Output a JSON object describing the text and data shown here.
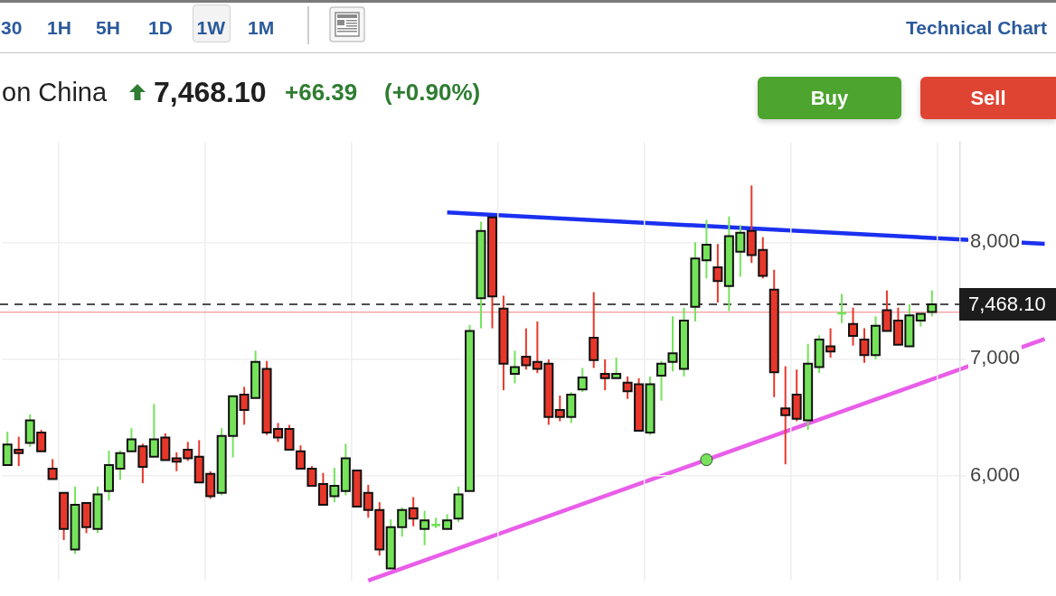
{
  "chart_data": {
    "type": "candlestick",
    "title": "on China",
    "annotations": [
      "30",
      "1H",
      "5H",
      "1D",
      "1W",
      "1M",
      "Technical Chart",
      "7,468.10",
      "+66.39",
      "(+0.90%)",
      "Buy",
      "Sell"
    ],
    "categories": [
      null,
      null,
      null,
      null,
      null,
      null,
      null,
      null,
      null,
      null,
      null,
      null,
      null,
      null,
      null,
      null,
      null,
      null,
      null,
      null,
      null,
      null,
      null,
      null,
      null,
      null,
      null,
      null,
      null,
      null,
      null,
      null,
      null,
      null,
      null,
      null,
      null,
      null,
      null,
      null,
      null,
      null,
      null,
      null,
      null,
      null,
      null,
      null,
      null,
      null,
      null,
      null,
      null,
      null,
      null,
      null,
      null,
      null,
      null,
      null,
      null,
      null,
      null,
      null,
      null,
      null,
      null,
      null,
      null,
      null,
      null,
      null,
      null,
      null,
      null,
      null,
      null,
      null,
      null,
      null,
      null,
      null,
      null,
      null,
      null,
      null,
      null,
      null,
      null,
      null,
      null,
      null,
      null
    ],
    "ohlc": [
      [
        6089,
        6376,
        6089,
        6266
      ],
      [
        6221,
        6332,
        6081,
        6192
      ],
      [
        6280,
        6524,
        6244,
        6472
      ],
      [
        6369,
        6391,
        6207,
        6207
      ],
      [
        6059,
        6140,
        5970,
        5970
      ],
      [
        5852,
        5852,
        5446,
        5542
      ],
      [
        5365,
        5904,
        5328,
        5749
      ],
      [
        5764,
        5764,
        5506,
        5557
      ],
      [
        5542,
        5904,
        5506,
        5838
      ],
      [
        5867,
        6214,
        5786,
        6089
      ],
      [
        6059,
        6214,
        5963,
        6192
      ],
      [
        6207,
        6406,
        6207,
        6310
      ],
      [
        6251,
        6273,
        5934,
        6074
      ],
      [
        6162,
        6613,
        6162,
        6310
      ],
      [
        6325,
        6362,
        6133,
        6133
      ],
      [
        6148,
        6199,
        6037,
        6118
      ],
      [
        6221,
        6288,
        6125,
        6148
      ],
      [
        6162,
        6303,
        5941,
        5941
      ],
      [
        6015,
        6037,
        5801,
        5823
      ],
      [
        5852,
        6406,
        5830,
        6340
      ],
      [
        6340,
        6679,
        6155,
        6679
      ],
      [
        6694,
        6760,
        6435,
        6561
      ],
      [
        6664,
        7070,
        6664,
        6974
      ],
      [
        6915,
        6982,
        6347,
        6369
      ],
      [
        6399,
        6450,
        6288,
        6325
      ],
      [
        6399,
        6435,
        6221,
        6221
      ],
      [
        6207,
        6258,
        6059,
        6059
      ],
      [
        6059,
        6081,
        5911,
        5911
      ],
      [
        5926,
        6022,
        5749,
        5749
      ],
      [
        5823,
        6066,
        5771,
        5911
      ],
      [
        5867,
        6273,
        5830,
        6148
      ],
      [
        6044,
        6044,
        5734,
        5734
      ],
      [
        5852,
        5919,
        5638,
        5705
      ],
      [
        5705,
        5771,
        5314,
        5365
      ],
      [
        5203,
        5624,
        5203,
        5557
      ],
      [
        5557,
        5727,
        5476,
        5705
      ],
      [
        5720,
        5815,
        5565,
        5631
      ],
      [
        5542,
        5697,
        5402,
        5616
      ],
      [
        5568,
        5638,
        5550,
        5576
      ],
      [
        5542,
        5668,
        5542,
        5616
      ],
      [
        5631,
        5904,
        5601,
        5838
      ],
      [
        5867,
        7291,
        5867,
        7240
      ],
      [
        7520,
        8177,
        7262,
        8096
      ],
      [
        8214,
        8214,
        7262,
        7535
      ],
      [
        7432,
        7542,
        6731,
        6959
      ],
      [
        6871,
        7070,
        6790,
        6930
      ],
      [
        7018,
        7262,
        6908,
        6945
      ],
      [
        6974,
        7321,
        6878,
        6915
      ],
      [
        6959,
        6996,
        6435,
        6502
      ],
      [
        6561,
        6686,
        6465,
        6502
      ],
      [
        6502,
        6716,
        6450,
        6694
      ],
      [
        6738,
        6922,
        6716,
        6841
      ],
      [
        7181,
        7572,
        6922,
        6989
      ],
      [
        6871,
        6996,
        6731,
        6834
      ],
      [
        6834,
        7011,
        6834,
        6871
      ],
      [
        6797,
        6849,
        6657,
        6723
      ],
      [
        6782,
        6834,
        6384,
        6384
      ],
      [
        6369,
        6849,
        6347,
        6782
      ],
      [
        6856,
        6982,
        6642,
        6959
      ],
      [
        6974,
        7365,
        6893,
        7048
      ],
      [
        6915,
        7439,
        6849,
        7328
      ],
      [
        7446,
        8000,
        7321,
        7860
      ],
      [
        7845,
        8192,
        7690,
        7978
      ],
      [
        7786,
        7985,
        7483,
        7668
      ],
      [
        7624,
        8221,
        7410,
        8052
      ],
      [
        7919,
        8148,
        7705,
        8081
      ],
      [
        8096,
        8487,
        7823,
        7889
      ],
      [
        7934,
        8044,
        7690,
        7712
      ],
      [
        7594,
        7764,
        6672,
        6886
      ],
      [
        6576,
        6937,
        6096,
        6517
      ],
      [
        6694,
        6908,
        6465,
        6487
      ],
      [
        6472,
        7129,
        6391,
        6959
      ],
      [
        6930,
        7203,
        6878,
        7166
      ],
      [
        7107,
        7262,
        7011,
        7063
      ],
      [
        7383,
        7557,
        7306,
        7391
      ],
      [
        7299,
        7439,
        7114,
        7196
      ],
      [
        7166,
        7262,
        6967,
        7033
      ],
      [
        7033,
        7365,
        6996,
        7284
      ],
      [
        7417,
        7587,
        7240,
        7240
      ],
      [
        7328,
        7439,
        7122,
        7122
      ],
      [
        7107,
        7469,
        7107,
        7373
      ],
      [
        7328,
        7387,
        7277,
        7387
      ],
      [
        7402,
        7587,
        7365,
        7468
      ],
      null,
      null,
      null,
      null,
      null,
      null,
      null,
      null,
      null,
      null
    ],
    "colors": [
      "#74e35a",
      "#e8372a",
      "#74e35a",
      "#e8372a",
      "#e8372a",
      "#e8372a",
      "#74e35a",
      "#e8372a",
      "#74e35a",
      "#74e35a",
      "#74e35a",
      "#74e35a",
      "#e8372a",
      "#74e35a",
      "#e8372a",
      "#e8372a",
      "#e8372a",
      "#e8372a",
      "#e8372a",
      "#74e35a",
      "#74e35a",
      "#e8372a",
      "#74e35a",
      "#e8372a",
      "#e8372a",
      "#e8372a",
      "#e8372a",
      "#e8372a",
      "#e8372a",
      "#74e35a",
      "#74e35a",
      "#e8372a",
      "#e8372a",
      "#e8372a",
      "#74e35a",
      "#74e35a",
      "#e8372a",
      "#74e35a",
      "#74e35a",
      "#74e35a",
      "#74e35a",
      "#74e35a",
      "#74e35a",
      "#e8372a",
      "#e8372a",
      "#74e35a",
      "#e8372a",
      "#e8372a",
      "#e8372a",
      "#e8372a",
      "#74e35a",
      "#74e35a",
      "#e8372a",
      "#e8372a",
      "#74e35a",
      "#e8372a",
      "#e8372a",
      "#74e35a",
      "#74e35a",
      "#74e35a",
      "#74e35a",
      "#74e35a",
      "#74e35a",
      "#e8372a",
      "#74e35a",
      "#74e35a",
      "#e8372a",
      "#e8372a",
      "#e8372a",
      "#e8372a",
      "#e8372a",
      "#74e35a",
      "#74e35a",
      "#e8372a",
      "#74e35a",
      "#e8372a",
      "#e8372a",
      "#74e35a",
      "#e8372a",
      "#e8372a",
      "#74e35a",
      "#74e35a",
      "#74e35a",
      null,
      null,
      null,
      null,
      null,
      null,
      null,
      null,
      null,
      null
    ],
    "series": [
      {
        "type": "line",
        "color": "#1b30f0",
        "values": [
          null,
          null,
          null,
          null,
          null,
          null,
          null,
          null,
          null,
          null,
          null,
          null,
          null,
          null,
          null,
          null,
          null,
          null,
          null,
          null,
          null,
          null,
          null,
          null,
          null,
          null,
          null,
          null,
          null,
          null,
          null,
          null,
          null,
          null,
          null,
          null,
          null,
          null,
          null,
          8256,
          null,
          null,
          null,
          null,
          null,
          null,
          null,
          null,
          null,
          null,
          null,
          null,
          null,
          null,
          null,
          null,
          null,
          null,
          null,
          null,
          null,
          null,
          null,
          null,
          null,
          null,
          null,
          null,
          null,
          null,
          null,
          null,
          null,
          null,
          null,
          null,
          null,
          null,
          null,
          null,
          null,
          null,
          null,
          null,
          null,
          null,
          null,
          null,
          null,
          null,
          null,
          null,
          7986
        ]
      },
      {
        "type": "line",
        "color": "#e95de9",
        "values": [
          null,
          null,
          null,
          null,
          null,
          null,
          null,
          null,
          null,
          null,
          null,
          null,
          null,
          null,
          null,
          null,
          null,
          null,
          null,
          null,
          null,
          null,
          null,
          null,
          null,
          null,
          null,
          null,
          null,
          null,
          null,
          null,
          5100,
          null,
          null,
          null,
          null,
          null,
          null,
          null,
          null,
          null,
          null,
          null,
          null,
          null,
          null,
          null,
          null,
          null,
          null,
          null,
          null,
          null,
          null,
          null,
          null,
          null,
          null,
          null,
          null,
          null,
          null,
          null,
          null,
          null,
          null,
          null,
          null,
          null,
          null,
          null,
          null,
          null,
          null,
          null,
          null,
          null,
          null,
          null,
          null,
          null,
          null,
          null,
          null,
          null,
          null,
          null,
          null,
          null,
          null,
          null,
          7170
        ]
      },
      {
        "type": "scatter",
        "color": "#78e25a",
        "marker": "circle",
        "values": [
          null,
          null,
          null,
          null,
          null,
          null,
          null,
          null,
          null,
          null,
          null,
          null,
          null,
          null,
          null,
          null,
          null,
          null,
          null,
          null,
          null,
          null,
          null,
          null,
          null,
          null,
          null,
          null,
          null,
          null,
          null,
          null,
          null,
          null,
          null,
          null,
          null,
          null,
          null,
          null,
          null,
          null,
          null,
          null,
          null,
          null,
          null,
          null,
          null,
          null,
          null,
          null,
          null,
          null,
          null,
          null,
          null,
          null,
          null,
          null,
          null,
          null,
          6135,
          null,
          null,
          null,
          null,
          null,
          null,
          null,
          null,
          null,
          null,
          null,
          null,
          null,
          null,
          null,
          null,
          null,
          null,
          null,
          null,
          null,
          null,
          null,
          null,
          null,
          null,
          null,
          null,
          null,
          null
        ]
      }
    ],
    "ylim": [
      5100,
      8860
    ],
    "yticks": [
      {
        "value": 6000,
        "label": "6,000"
      },
      {
        "value": 7000,
        "label": "7,000"
      },
      {
        "value": 8000,
        "label": "8,000"
      }
    ],
    "ref_lines": [
      {
        "axis": "y",
        "value": 7468.1,
        "label": "7,468.10",
        "color": "#4d4d4d",
        "line_style": "dashed"
      },
      {
        "axis": "y",
        "value": 7400,
        "color": "#f07f7f"
      }
    ],
    "grid": true,
    "tick_labels": "y"
  }
}
